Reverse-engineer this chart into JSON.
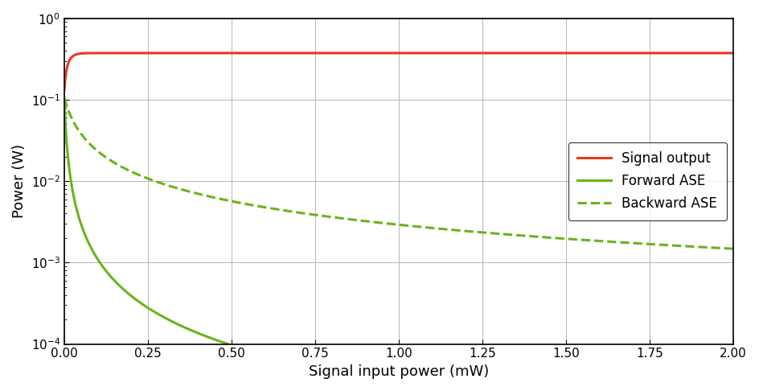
{
  "xlabel": "Signal input power (mW)",
  "ylabel": "Power (W)",
  "xlim": [
    0,
    2.0
  ],
  "ylim_log": [
    -4,
    0
  ],
  "xticks": [
    0.0,
    0.25,
    0.5,
    0.75,
    1.0,
    1.25,
    1.5,
    1.75,
    2.0
  ],
  "signal_color": "#e8391a",
  "ase_color": "#6ab41a",
  "legend_labels": [
    "Signal output",
    "Forward ASE",
    "Backward ASE"
  ],
  "signal_start": 0.135,
  "signal_sat": 0.375,
  "signal_rise_rate": 80,
  "fwd_ase_A": 0.105,
  "fwd_ase_k": 180.0,
  "fwd_ase_n": 1.55,
  "bwd_ase_A": 0.105,
  "bwd_ase_k": 35.0,
  "bwd_ase_n": 1.0,
  "x_max_mW": 2.0,
  "n_points": 1000
}
